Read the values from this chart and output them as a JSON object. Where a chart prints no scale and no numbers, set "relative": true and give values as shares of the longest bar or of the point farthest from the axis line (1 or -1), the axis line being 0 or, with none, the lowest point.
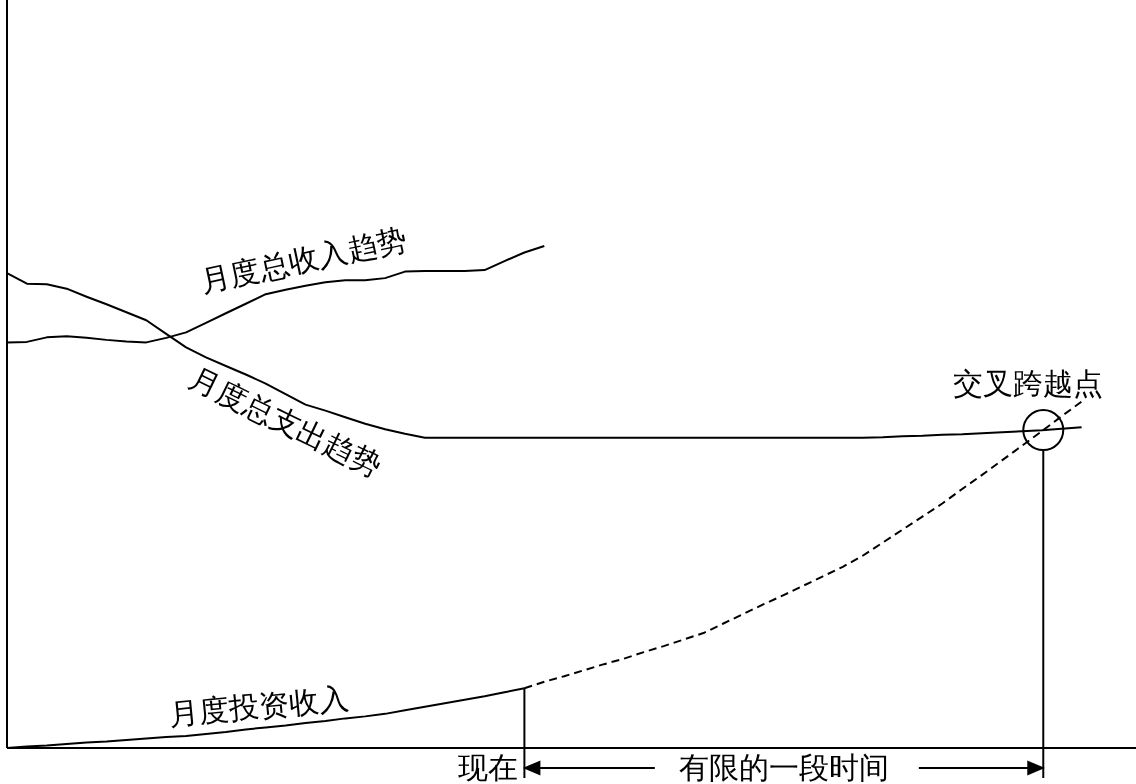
{
  "chart_data": {
    "type": "line",
    "relative": true,
    "line_style": "solid",
    "categories": [
      null,
      null,
      null,
      null,
      null,
      null,
      null,
      null,
      null,
      null,
      null,
      null,
      null,
      null,
      null,
      null,
      null,
      null,
      null,
      null,
      null,
      null,
      null,
      null,
      null,
      null,
      null,
      null,
      null,
      null,
      null,
      null,
      null,
      null,
      null,
      null,
      null,
      null,
      null,
      null,
      null,
      null,
      null,
      null,
      null,
      null,
      null,
      null,
      null,
      null,
      null,
      null,
      null,
      null,
      null,
      null,
      null
    ],
    "series": [
      {
        "name": "月度总收入趋势",
        "color": "#000000",
        "values": [
          0.808,
          0.809,
          0.818,
          0.82,
          0.817,
          0.813,
          0.81,
          0.808,
          0.817,
          0.828,
          0.847,
          0.866,
          0.885,
          0.904,
          0.913,
          0.921,
          0.928,
          0.932,
          0.932,
          0.936,
          0.949,
          0.95,
          0.95,
          0.95,
          0.952,
          0.97,
          0.987,
          1,
          null,
          null,
          null,
          null,
          null,
          null,
          null,
          null,
          null,
          null,
          null,
          null,
          null,
          null,
          null,
          null,
          null,
          null,
          null,
          null,
          null,
          null,
          null,
          null,
          null,
          null,
          null,
          null,
          null
        ]
      },
      {
        "name": "月度总支出趋势",
        "color": "#000000",
        "values": [
          0.946,
          0.925,
          0.924,
          0.915,
          0.899,
          0.884,
          0.868,
          0.852,
          0.825,
          0.798,
          0.778,
          0.761,
          0.744,
          0.726,
          0.705,
          0.684,
          0.672,
          0.659,
          0.646,
          0.635,
          0.626,
          0.618,
          0.618,
          0.618,
          0.618,
          0.618,
          0.618,
          0.618,
          0.618,
          0.618,
          0.618,
          0.618,
          0.618,
          0.618,
          0.618,
          0.618,
          0.618,
          0.618,
          0.618,
          0.618,
          0.618,
          0.618,
          0.618,
          0.618,
          0.619,
          0.621,
          0.622,
          0.624,
          0.625,
          0.627,
          0.629,
          0.631,
          0.633,
          0.636,
          0.639,
          null,
          null
        ]
      },
      {
        "name": "月度投资收入",
        "color": "#000000",
        "values": [
          0,
          0.003,
          0.005,
          0.008,
          0.011,
          0.013,
          0.016,
          0.019,
          0.022,
          0.024,
          0.028,
          0.032,
          0.037,
          0.041,
          0.045,
          0.05,
          0.054,
          0.059,
          0.063,
          0.068,
          0.075,
          0.082,
          0.089,
          0.096,
          0.103,
          0.111,
          0.119,
          null,
          null,
          null,
          null,
          null,
          null,
          null,
          null,
          null,
          null,
          null,
          null,
          null,
          null,
          null,
          null,
          null,
          null,
          null,
          null,
          null,
          null,
          null,
          null,
          null,
          null,
          null,
          null,
          null,
          null
        ]
      },
      {
        "color": "#000000",
        "line_style": "dashed",
        "values": [
          null,
          null,
          null,
          null,
          null,
          null,
          null,
          null,
          null,
          null,
          null,
          null,
          null,
          null,
          null,
          null,
          null,
          null,
          null,
          null,
          null,
          null,
          null,
          null,
          null,
          null,
          0.119,
          0.132,
          0.143,
          0.155,
          0.167,
          0.178,
          0.191,
          0.203,
          0.216,
          0.229,
          0.248,
          0.267,
          0.286,
          0.304,
          0.323,
          0.342,
          0.361,
          0.383,
          0.409,
          0.435,
          0.461,
          0.487,
          0.516,
          0.544,
          0.573,
          0.602,
          0.631,
          0.661,
          0.69,
          null,
          null
        ]
      }
    ],
    "annotations": [
      "交叉跨越点",
      "现在",
      "有限的一段时间"
    ]
  }
}
